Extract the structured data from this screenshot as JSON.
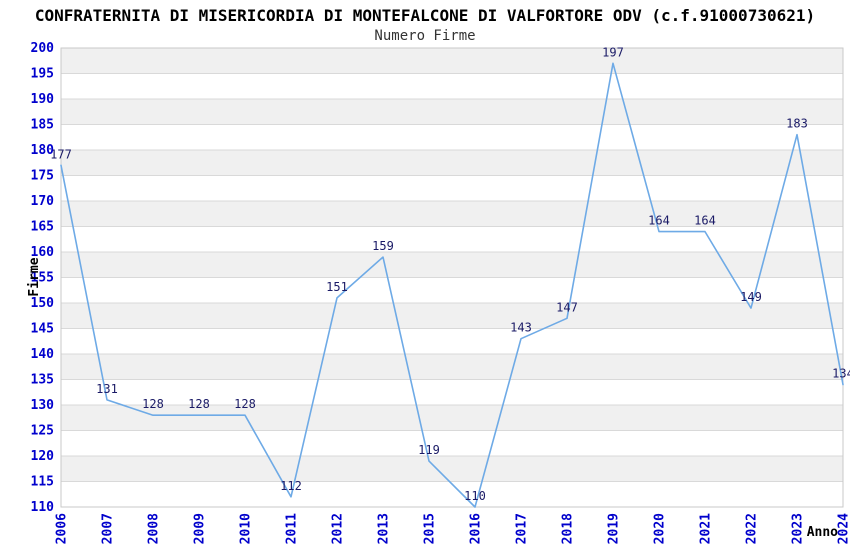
{
  "chart_data": {
    "type": "line",
    "title": "CONFRATERNITA DI MISERICORDIA DI MONTEFALCONE DI VALFORTORE ODV (c.f.91000730621)",
    "subtitle": "Numero Firme",
    "xlabel": "Anno",
    "ylabel": "Firme",
    "categories": [
      "2006",
      "2007",
      "2008",
      "2009",
      "2010",
      "2011",
      "2012",
      "2013",
      "2015",
      "2016",
      "2017",
      "2018",
      "2019",
      "2020",
      "2021",
      "2022",
      "2023",
      "2024"
    ],
    "values": [
      177,
      131,
      128,
      128,
      128,
      112,
      151,
      159,
      119,
      110,
      143,
      147,
      197,
      164,
      164,
      149,
      183,
      134
    ],
    "ylim": [
      110,
      200
    ],
    "ytick_step": 5,
    "grid": true,
    "legend_position": "none",
    "markers": "none",
    "data_labels_visible": true,
    "x_tick_rotation_degrees": 90,
    "colors": {
      "line": "#6EAAE6",
      "tick_labels": "#0000CC",
      "data_labels": "#1A1A66",
      "axis_titles": "#000000",
      "band_alt": "#F0F0F0",
      "band_base": "#FFFFFF",
      "gridline": "#D9D9D9",
      "plot_border": "#C9C9C9",
      "background": "#FFFFFF"
    }
  }
}
